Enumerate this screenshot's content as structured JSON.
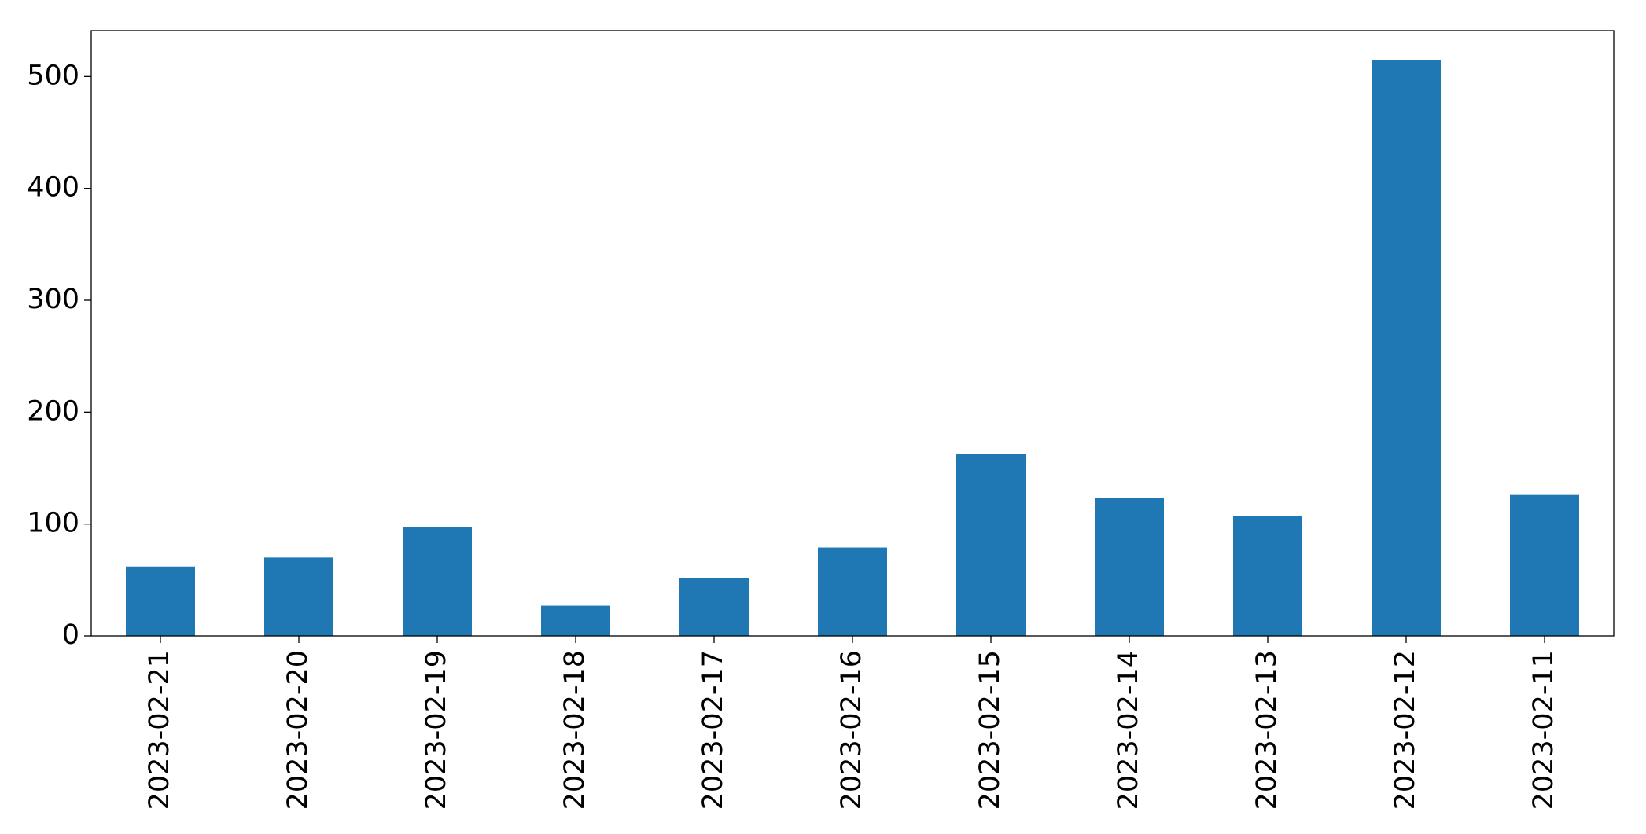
{
  "chart_data": {
    "type": "bar",
    "categories": [
      "2023-02-21",
      "2023-02-20",
      "2023-02-19",
      "2023-02-18",
      "2023-02-17",
      "2023-02-16",
      "2023-02-15",
      "2023-02-14",
      "2023-02-13",
      "2023-02-12",
      "2023-02-11"
    ],
    "values": [
      62,
      70,
      97,
      27,
      52,
      79,
      163,
      123,
      107,
      515,
      126
    ],
    "color": "#1f77b4",
    "ylim": [
      0,
      541
    ],
    "yticks": [
      0,
      100,
      200,
      300,
      400,
      500
    ],
    "grid": false
  }
}
